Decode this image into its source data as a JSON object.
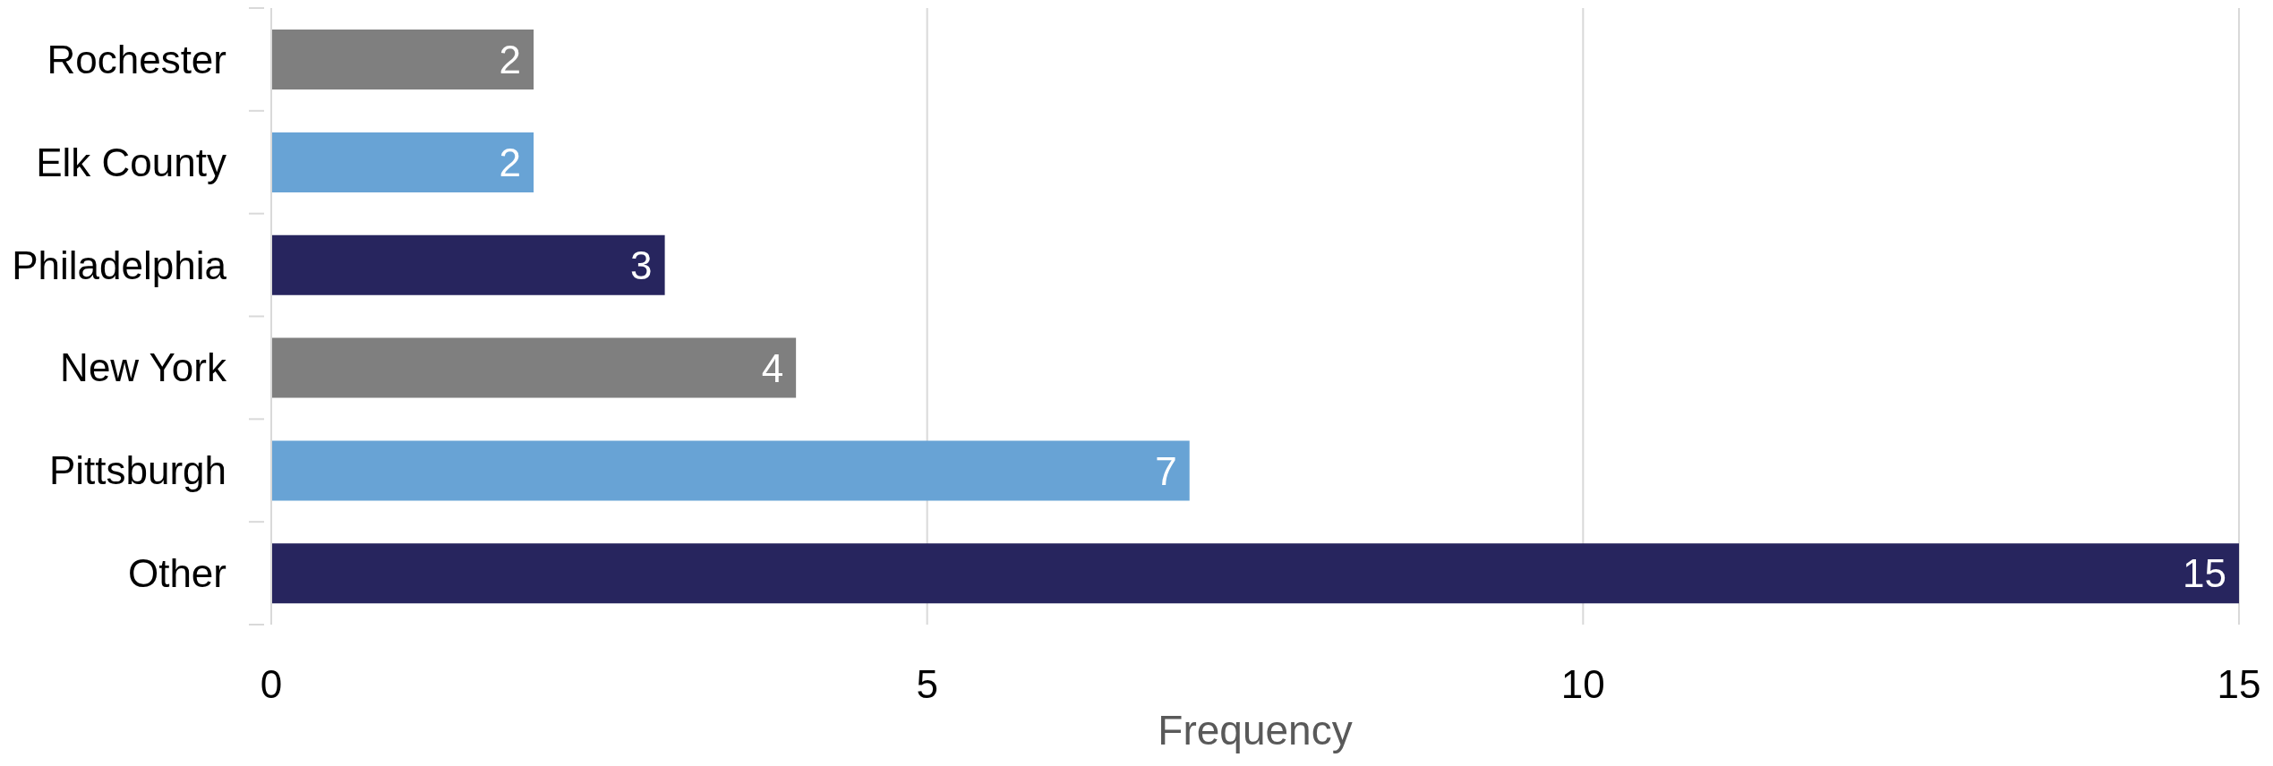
{
  "chart_data": {
    "type": "bar",
    "orientation": "horizontal",
    "categories": [
      "Rochester",
      "Elk County",
      "Philadelphia",
      "New York",
      "Pittsburgh",
      "Other"
    ],
    "values": [
      2,
      2,
      3,
      4,
      7,
      15
    ],
    "colors": [
      "#7f7f7f",
      "#68a3d5",
      "#27255e",
      "#7f7f7f",
      "#68a3d5",
      "#27255e"
    ],
    "xlabel": "Frequency",
    "xlim": [
      0,
      15
    ],
    "xticks": [
      0,
      5,
      10,
      15
    ],
    "grid": "x",
    "data_labels": true
  }
}
